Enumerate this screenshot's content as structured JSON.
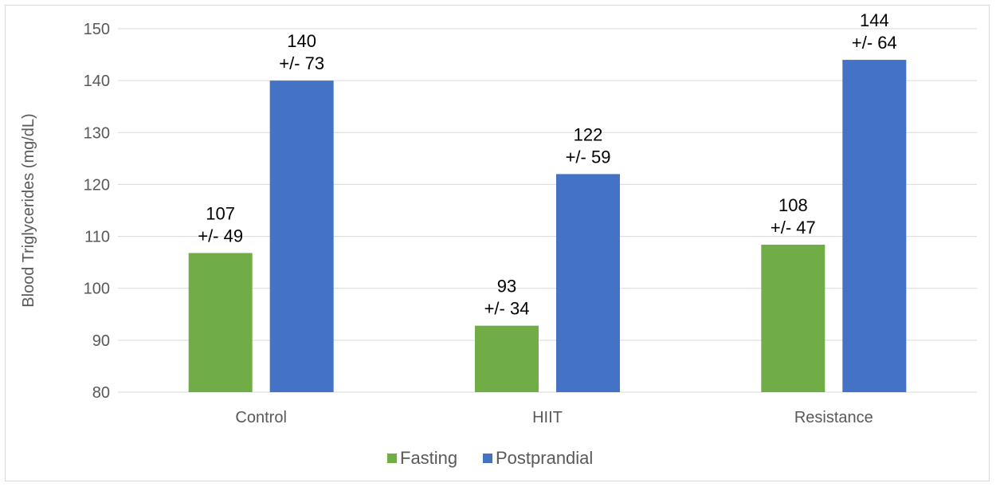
{
  "chart_data": {
    "type": "bar",
    "title": "",
    "xlabel": "",
    "ylabel": "Blood Triglycerides (mg/dL)",
    "ylim": [
      80,
      150
    ],
    "yticks": [
      80,
      90,
      100,
      110,
      120,
      130,
      140,
      150
    ],
    "grid": true,
    "legend_position": "bottom",
    "categories": [
      "Control",
      "HIIT",
      "Resistance"
    ],
    "series": [
      {
        "name": "Fasting",
        "color": "#70ad47",
        "values": [
          106.8,
          92.8,
          108.4
        ],
        "labels": [
          {
            "mean": "107",
            "sd": "+/- 49"
          },
          {
            "mean": "93",
            "sd": "+/- 34"
          },
          {
            "mean": "108",
            "sd": "+/- 47"
          }
        ]
      },
      {
        "name": "Postprandial",
        "color": "#4472c4",
        "values": [
          140,
          122,
          144
        ],
        "labels": [
          {
            "mean": "140",
            "sd": "+/- 73"
          },
          {
            "mean": "122",
            "sd": "+/- 59"
          },
          {
            "mean": "144",
            "sd": "+/- 64"
          }
        ]
      }
    ]
  }
}
